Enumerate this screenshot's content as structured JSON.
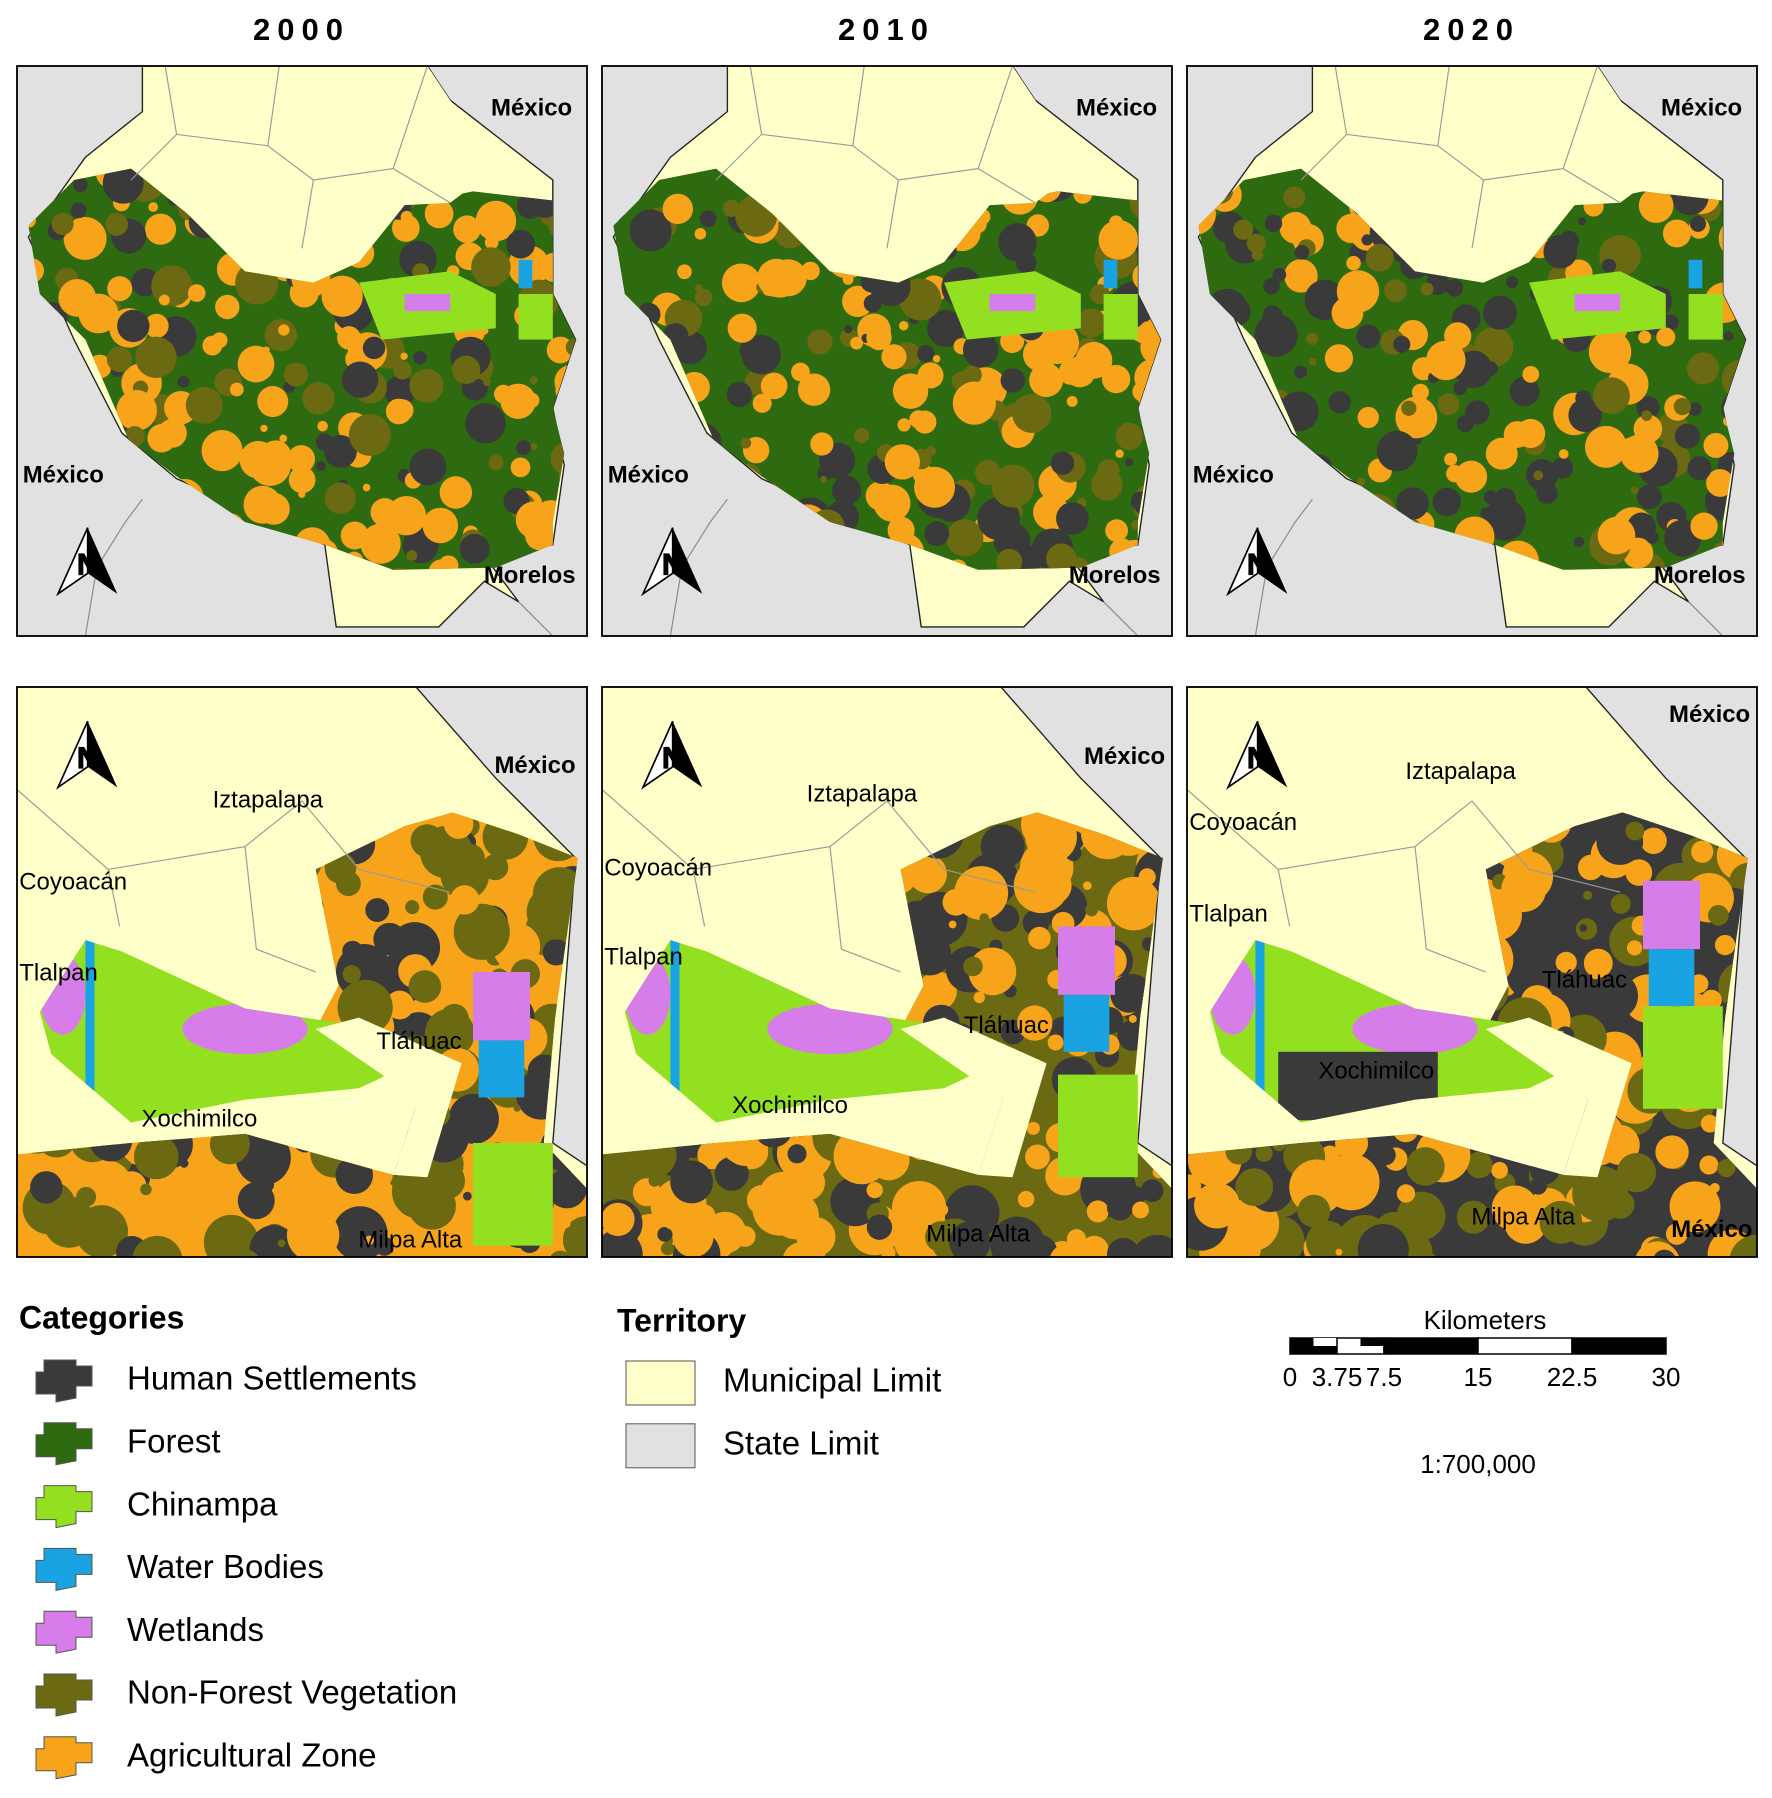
{
  "titles": [
    "2000",
    "2010",
    "2020"
  ],
  "north_label": "N",
  "panels": [
    {
      "labels": [
        "México",
        "México",
        "Morelos"
      ]
    },
    {
      "labels": [
        "México",
        "México",
        "Morelos"
      ]
    },
    {
      "labels": [
        "México",
        "México",
        "Morelos"
      ]
    },
    {
      "labels": [
        "México",
        "Iztapalapa",
        "Coyoacán",
        "Tlalpan",
        "Tláhuac",
        "Xochimilco",
        "Milpa Alta"
      ]
    },
    {
      "labels": [
        "México",
        "Iztapalapa",
        "Coyoacán",
        "Tlalpan",
        "Tláhuac",
        "Xochimilco",
        "Milpa Alta"
      ]
    },
    {
      "labels": [
        "México",
        "Iztapalapa",
        "Coyoacán",
        "Tlalpan",
        "Tláhuac",
        "Xochimilco",
        "Milpa Alta",
        "México"
      ]
    }
  ],
  "legend": {
    "categories": {
      "title": "Categories",
      "items": [
        {
          "label": "Human Settlements",
          "color": "#3a3a3a"
        },
        {
          "label": "Forest",
          "color": "#2d6a10"
        },
        {
          "label": "Chinampa",
          "color": "#93e021"
        },
        {
          "label": "Water Bodies",
          "color": "#1aa3e3"
        },
        {
          "label": "Wetlands",
          "color": "#d67de9"
        },
        {
          "label": "Non-Forest Vegetation",
          "color": "#6b6a12"
        },
        {
          "label": "Agricultural Zone",
          "color": "#f8a41a"
        }
      ]
    },
    "territory": {
      "title": "Territory",
      "items": [
        {
          "label": "Municipal Limit",
          "color": "#ffffc9"
        },
        {
          "label": "State Limit",
          "color": "#e1e1e1"
        }
      ]
    }
  },
  "scale": {
    "title": "Kilometers",
    "ticks": [
      0,
      3.75,
      7.5,
      15,
      22.5,
      30
    ],
    "ratio": "1:700,000"
  }
}
